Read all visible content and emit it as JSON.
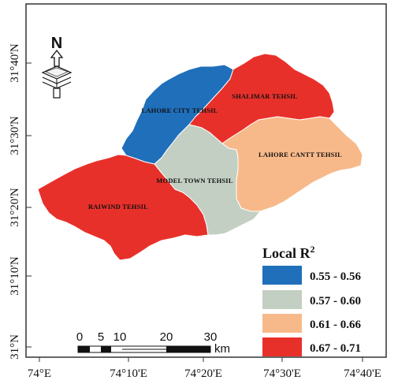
{
  "map": {
    "lat_ticks": [
      "31°40'N",
      "31°30'N",
      "31°20'N",
      "31°10'N",
      "31°N"
    ],
    "lon_ticks": [
      "74°E",
      "74°10'E",
      "74°20'E",
      "74°30'E",
      "74°40'E"
    ],
    "regions": [
      {
        "name": "LAHORE CITY TEHSIL",
        "class": "0.55 - 0.56",
        "color": "#1f6fba"
      },
      {
        "name": "SHALIMAR TEHSIL",
        "class": "0.67 - 0.71",
        "color": "#e8302a"
      },
      {
        "name": "LAHORE CANTT TEHSIL",
        "class": "0.61 - 0.66",
        "color": "#f8b98a"
      },
      {
        "name": "MODEL TOWN TEHSIL",
        "class": "0.57 - 0.60",
        "color": "#c3cfc2"
      },
      {
        "name": "RAIWIND TEHSIL",
        "class": "0.67 - 0.71",
        "color": "#e8302a"
      }
    ],
    "north_label": "N",
    "legend": {
      "title": "Local R",
      "title_sup": "2",
      "items": [
        {
          "label": "0.55 - 0.56",
          "color": "#1f6fba"
        },
        {
          "label": "0.57 - 0.60",
          "color": "#c3cfc2"
        },
        {
          "label": "0.61 - 0.66",
          "color": "#f8b98a"
        },
        {
          "label": "0.67 - 0.71",
          "color": "#e8302a"
        }
      ]
    },
    "scalebar": {
      "ticks": [
        "0",
        "5",
        "10",
        "20",
        "30"
      ],
      "unit": "km"
    }
  }
}
